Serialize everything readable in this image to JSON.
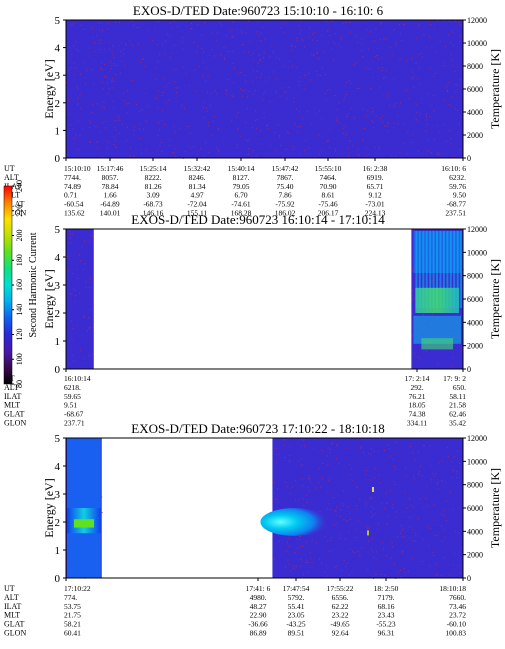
{
  "colors": {
    "spectrogram_background": "#3a2cd0",
    "speckle": "#b02a6a",
    "axis": "#000000",
    "colorbar": [
      "#000000",
      "#3a0a50",
      "#4a1ab0",
      "#2a2ad8",
      "#1060f0",
      "#00b0f0",
      "#00e0d0",
      "#10e080",
      "#60e020",
      "#c0e000",
      "#ffe000",
      "#ff8000",
      "#ff0000"
    ]
  },
  "colorbar": {
    "label": "Second Harmonic Current",
    "ticks": [
      "80",
      "100",
      "120",
      "140",
      "160",
      "180",
      "200",
      "220",
      "240"
    ]
  },
  "ephemeris_labels": [
    "UT",
    "ALT",
    "ILAT",
    "MLT",
    "GLAT",
    "GLON"
  ],
  "chart_data": [
    {
      "type": "heatmap",
      "title": "EXOS-D/TED   Date:960723   15:10:10 - 16:10: 6",
      "ylabel": "Energy [eV]",
      "y2label": "Temperature [K]",
      "ylim": [
        0,
        5
      ],
      "y2lim": [
        0,
        12000
      ],
      "yticks": [
        "0",
        "1",
        "2",
        "3",
        "4",
        "5"
      ],
      "y2ticks": [
        "0",
        "2000",
        "4000",
        "6000",
        "8000",
        "10000",
        "12000"
      ],
      "data_coverage": [
        [
          0.0,
          1.0
        ]
      ],
      "columns": [
        {
          "UT": "15:10:10",
          "ALT": "7744.",
          "ILAT": "74.89",
          "MLT": "0.71",
          "GLAT": "-60.54",
          "GLON": "135.62"
        },
        {
          "UT": "15:17:46",
          "ALT": "8057.",
          "ILAT": "78.84",
          "MLT": "1.66",
          "GLAT": "-64.89",
          "GLON": "140.01"
        },
        {
          "UT": "15:25:14",
          "ALT": "8222.",
          "ILAT": "81.26",
          "MLT": "3.09",
          "GLAT": "-68.73",
          "GLON": "146.16"
        },
        {
          "UT": "15:32:42",
          "ALT": "8246.",
          "ILAT": "81.34",
          "MLT": "4.97",
          "GLAT": "-72.04",
          "GLON": "155.11"
        },
        {
          "UT": "15:40:14",
          "ALT": "8127.",
          "ILAT": "79.05",
          "MLT": "6.70",
          "GLAT": "-74.61",
          "GLON": "168.28"
        },
        {
          "UT": "15:47:42",
          "ALT": "7867.",
          "ILAT": "75.40",
          "MLT": "7.86",
          "GLAT": "-75.92",
          "GLON": "186.02"
        },
        {
          "UT": "15:55:10",
          "ALT": "7464.",
          "ILAT": "70.90",
          "MLT": "8.61",
          "GLAT": "-75.46",
          "GLON": "206.17"
        },
        {
          "UT": "16: 2:38",
          "ALT": "6919.",
          "ILAT": "65.71",
          "MLT": "9.12",
          "GLAT": "-73.01",
          "GLON": "224.13"
        },
        {
          "UT": "16:10: 6",
          "ALT": "6232.",
          "ILAT": "59.76",
          "MLT": "9.50",
          "GLAT": "-68.77",
          "GLON": "237.51"
        }
      ]
    },
    {
      "type": "heatmap",
      "title": "EXOS-D/TED   Date:960723   16:10:14 - 17:10:14",
      "ylabel": "Energy [eV]",
      "y2label": "Temperature [K]",
      "ylim": [
        0,
        5
      ],
      "y2lim": [
        0,
        12000
      ],
      "yticks": [
        "0",
        "1",
        "2",
        "3",
        "4",
        "5"
      ],
      "y2ticks": [
        "0",
        "2000",
        "4000",
        "6000",
        "8000",
        "10000",
        "12000"
      ],
      "data_coverage": [
        [
          0.0,
          0.07
        ],
        [
          0.87,
          1.0
        ]
      ],
      "columns": [
        {
          "UT": "16:10:14",
          "ALT": "6218.",
          "ILAT": "59.65",
          "MLT": "9.51",
          "GLAT": "-68.67",
          "GLON": "237.71"
        },
        {
          "UT": "17: 2:14",
          "ALT": "292.",
          "ILAT": "76.21",
          "MLT": "18.05",
          "GLAT": "74.38",
          "GLON": "334.11"
        },
        {
          "UT": "17: 9: 2",
          "ALT": "650.",
          "ILAT": "58.11",
          "MLT": "21.58",
          "GLAT": "62.46",
          "GLON": "35.42"
        }
      ]
    },
    {
      "type": "heatmap",
      "title": "EXOS-D/TED   Date:960723   17:10:22 - 18:10:18",
      "ylabel": "Energy [eV]",
      "y2label": "Temperature [K]",
      "ylim": [
        0,
        5
      ],
      "y2lim": [
        0,
        12000
      ],
      "yticks": [
        "0",
        "1",
        "2",
        "3",
        "4",
        "5"
      ],
      "y2ticks": [
        "0",
        "2000",
        "4000",
        "6000",
        "8000",
        "10000",
        "12000"
      ],
      "data_coverage": [
        [
          0.0,
          0.09
        ],
        [
          0.52,
          1.0
        ]
      ],
      "columns": [
        {
          "UT": "17:10:22",
          "ALT": "774.",
          "ILAT": "53.75",
          "MLT": "21.75",
          "GLAT": "58.21",
          "GLON": "60.41"
        },
        {
          "UT": "17:41: 6",
          "ALT": "4980.",
          "ILAT": "48.27",
          "MLT": "22.90",
          "GLAT": "-36.66",
          "GLON": "86.89"
        },
        {
          "UT": "17:47:54",
          "ALT": "5792.",
          "ILAT": "55.41",
          "MLT": "23.05",
          "GLAT": "-43.25",
          "GLON": "89.51"
        },
        {
          "UT": "17:55:22",
          "ALT": "6556.",
          "ILAT": "62.22",
          "MLT": "23.22",
          "GLAT": "-49.65",
          "GLON": "92.64"
        },
        {
          "UT": "18: 2:50",
          "ALT": "7179.",
          "ILAT": "68.16",
          "MLT": "23.43",
          "GLAT": "-55.23",
          "GLON": "96.31"
        },
        {
          "UT": "18:10:18",
          "ALT": "7660.",
          "ILAT": "73.46",
          "MLT": "23.72",
          "GLAT": "-60.10",
          "GLON": "100.83"
        }
      ]
    }
  ]
}
